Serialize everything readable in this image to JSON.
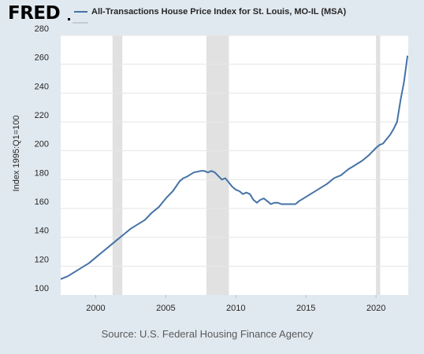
{
  "header": {
    "logo_text": "FRED",
    "title": "All-Transactions House Price Index for St. Louis, MO-IL (MSA)"
  },
  "footer": {
    "source": "Source: U.S. Federal Housing Finance Agency"
  },
  "colors": {
    "background": "#e1e9f0",
    "plot_background": "#ffffff",
    "series_line": "#4572a7",
    "recession_band": "#e1e1e1",
    "gridline": "#e6e6e6"
  },
  "chart_data": {
    "type": "line",
    "title": "All-Transactions House Price Index for St. Louis, MO-IL (MSA)",
    "xlabel": "",
    "ylabel": "Index 1995:Q1=100",
    "xlim": [
      1997.5,
      2022.3
    ],
    "ylim": [
      100,
      280
    ],
    "x_ticks": [
      2000,
      2005,
      2010,
      2015,
      2020
    ],
    "y_ticks": [
      100,
      120,
      140,
      160,
      180,
      200,
      220,
      240,
      260,
      280
    ],
    "grid": "horizontal",
    "legend": "top-left",
    "recessions": [
      [
        2001.2,
        2001.9
      ],
      [
        2007.9,
        2009.5
      ],
      [
        2020.0,
        2020.3
      ]
    ],
    "series": [
      {
        "name": "All-Transactions House Price Index for St. Louis, MO-IL (MSA)",
        "x": [
          1997.5,
          1998.0,
          1998.5,
          1999.0,
          1999.5,
          2000.0,
          2000.5,
          2001.0,
          2001.5,
          2002.0,
          2002.5,
          2003.0,
          2003.5,
          2004.0,
          2004.5,
          2005.0,
          2005.5,
          2006.0,
          2006.25,
          2006.5,
          2007.0,
          2007.5,
          2007.75,
          2008.0,
          2008.25,
          2008.5,
          2009.0,
          2009.25,
          2009.5,
          2009.75,
          2010.0,
          2010.25,
          2010.5,
          2010.75,
          2011.0,
          2011.25,
          2011.5,
          2011.75,
          2012.0,
          2012.25,
          2012.5,
          2012.75,
          2013.0,
          2013.25,
          2013.5,
          2013.75,
          2014.0,
          2014.25,
          2014.5,
          2015.0,
          2015.5,
          2016.0,
          2016.5,
          2017.0,
          2017.5,
          2018.0,
          2018.5,
          2019.0,
          2019.5,
          2020.0,
          2020.25,
          2020.5,
          2020.75,
          2021.0,
          2021.25,
          2021.5,
          2021.75,
          2022.0,
          2022.25
        ],
        "values": [
          111,
          113,
          116,
          119,
          122,
          126,
          130,
          134,
          138,
          142,
          146,
          149,
          152,
          157,
          161,
          167,
          172,
          179,
          181,
          182,
          185,
          186,
          186,
          185,
          186,
          185,
          180,
          181,
          178,
          175,
          173,
          172,
          170,
          171,
          170,
          166,
          164,
          166,
          167,
          165,
          163,
          164,
          164,
          163,
          163,
          163,
          163,
          163,
          165,
          168,
          171,
          174,
          177,
          181,
          183,
          187,
          190,
          193,
          197,
          202,
          204,
          205,
          208,
          211,
          215,
          220,
          235,
          248,
          266
        ]
      }
    ]
  }
}
